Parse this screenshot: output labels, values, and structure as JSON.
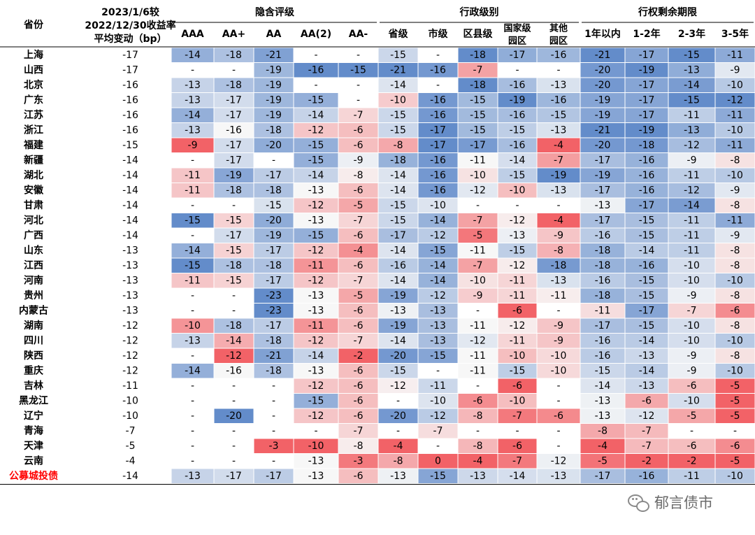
{
  "chart_data": {
    "type": "heatmap",
    "header": {
      "province_label": "省份",
      "avg_label_lines": [
        "2023/1/6较",
        "2022/12/30收益率",
        "平均变动（bp）"
      ],
      "groups": [
        {
          "name": "隐含评级",
          "columns": [
            "AAA",
            "AA+",
            "AA",
            "AA(2)",
            "AA-"
          ]
        },
        {
          "name": "行政级别",
          "columns": [
            "省级",
            "市级",
            "区县级",
            "国家级\n园区",
            "其他\n园区"
          ]
        },
        {
          "name": "行权剩余期限",
          "columns": [
            "1年以内",
            "1-2年",
            "2-3年",
            "3-5年"
          ]
        }
      ]
    },
    "rows": [
      {
        "province": "上海",
        "avg": -17,
        "values": [
          -14,
          -18,
          -21,
          "-",
          "-",
          -15,
          "-",
          -18,
          -17,
          -16,
          -21,
          -17,
          -15,
          -11
        ]
      },
      {
        "province": "山西",
        "avg": -17,
        "values": [
          "-",
          "-",
          -19,
          -16,
          -15,
          -21,
          -16,
          -7,
          "-",
          "-",
          -20,
          -19,
          -13,
          -9
        ]
      },
      {
        "province": "北京",
        "avg": -16,
        "values": [
          -13,
          -18,
          -19,
          "-",
          "-",
          -14,
          "-",
          -18,
          -16,
          -13,
          -20,
          -17,
          -14,
          -10
        ]
      },
      {
        "province": "广东",
        "avg": -16,
        "values": [
          -13,
          -17,
          -19,
          -15,
          "-",
          -10,
          -16,
          -15,
          -19,
          -16,
          -19,
          -17,
          -15,
          -12
        ]
      },
      {
        "province": "江苏",
        "avg": -16,
        "values": [
          -14,
          -17,
          -19,
          -14,
          -7,
          -15,
          -16,
          -15,
          -16,
          -15,
          -19,
          -17,
          -11,
          -11
        ]
      },
      {
        "province": "浙江",
        "avg": -16,
        "values": [
          -13,
          -16,
          -18,
          -12,
          -6,
          -15,
          -17,
          -15,
          -15,
          -13,
          -21,
          -19,
          -13,
          -10
        ]
      },
      {
        "province": "福建",
        "avg": -15,
        "values": [
          -9,
          -17,
          -20,
          -15,
          -6,
          -8,
          -17,
          -17,
          -16,
          -4,
          -20,
          -18,
          -12,
          -11
        ]
      },
      {
        "province": "新疆",
        "avg": -14,
        "values": [
          "-",
          -17,
          "-",
          -15,
          -9,
          -18,
          -16,
          -11,
          -14,
          -7,
          -17,
          -16,
          -9,
          -8
        ]
      },
      {
        "province": "湖北",
        "avg": -14,
        "values": [
          -11,
          -19,
          -17,
          -14,
          -8,
          -14,
          -16,
          -10,
          -15,
          -19,
          -19,
          -16,
          -11,
          -10
        ]
      },
      {
        "province": "安徽",
        "avg": -14,
        "values": [
          -11,
          -18,
          -18,
          -13,
          -6,
          -14,
          -16,
          -12,
          -10,
          -13,
          -17,
          -16,
          -12,
          -9
        ]
      },
      {
        "province": "甘肃",
        "avg": -14,
        "values": [
          "-",
          "-",
          -15,
          -12,
          -5,
          -15,
          -10,
          "-",
          "-",
          "-",
          -13,
          -17,
          -14,
          -8
        ]
      },
      {
        "province": "河北",
        "avg": -14,
        "values": [
          -15,
          -15,
          -20,
          -13,
          -7,
          -15,
          -14,
          -7,
          -12,
          -4,
          -17,
          -15,
          -11,
          -11
        ]
      },
      {
        "province": "广西",
        "avg": -14,
        "values": [
          "-",
          -17,
          -19,
          -15,
          -6,
          -17,
          -12,
          -5,
          -13,
          -9,
          -16,
          -15,
          -11,
          -9
        ]
      },
      {
        "province": "山东",
        "avg": -13,
        "values": [
          -14,
          -15,
          -17,
          -12,
          -4,
          -14,
          -15,
          -11,
          -15,
          -8,
          -18,
          -14,
          -11,
          -8
        ]
      },
      {
        "province": "江西",
        "avg": -13,
        "values": [
          -15,
          -18,
          -18,
          -11,
          -6,
          -16,
          -14,
          -7,
          -12,
          -18,
          -18,
          -16,
          -10,
          -8
        ]
      },
      {
        "province": "河南",
        "avg": -13,
        "values": [
          -11,
          -15,
          -17,
          -12,
          -7,
          -14,
          -14,
          -10,
          -11,
          -13,
          -16,
          -15,
          -10,
          -10
        ]
      },
      {
        "province": "贵州",
        "avg": -13,
        "values": [
          "-",
          "-",
          -23,
          -13,
          -5,
          -19,
          -12,
          -9,
          -11,
          -11,
          -18,
          -15,
          -9,
          -8
        ]
      },
      {
        "province": "内蒙古",
        "avg": -13,
        "values": [
          "-",
          "-",
          -23,
          -13,
          -6,
          -13,
          -13,
          "-",
          -6,
          "-",
          -11,
          -17,
          -7,
          -6
        ]
      },
      {
        "province": "湖南",
        "avg": -12,
        "values": [
          -10,
          -18,
          -17,
          -11,
          -6,
          -19,
          -13,
          -11,
          -12,
          -9,
          -17,
          -15,
          -10,
          -8
        ]
      },
      {
        "province": "四川",
        "avg": -12,
        "values": [
          -13,
          -14,
          -18,
          -12,
          -7,
          -14,
          -13,
          -12,
          -11,
          -9,
          -16,
          -14,
          -10,
          -10
        ]
      },
      {
        "province": "陕西",
        "avg": -12,
        "values": [
          "-",
          -12,
          -21,
          -14,
          -2,
          -20,
          -15,
          -11,
          -10,
          -10,
          -16,
          -13,
          -9,
          -8
        ]
      },
      {
        "province": "重庆",
        "avg": -12,
        "values": [
          -14,
          -16,
          -18,
          -13,
          -6,
          -15,
          "-",
          -11,
          -15,
          -10,
          -15,
          -14,
          -9,
          -10
        ]
      },
      {
        "province": "吉林",
        "avg": -11,
        "values": [
          "-",
          "-",
          "-",
          -12,
          -6,
          -12,
          -11,
          "-",
          -6,
          "-",
          -14,
          -13,
          -6,
          -5
        ]
      },
      {
        "province": "黑龙江",
        "avg": -10,
        "values": [
          "-",
          "-",
          "-",
          -15,
          -6,
          "-",
          -10,
          -6,
          -10,
          "-",
          -13,
          -6,
          -10,
          -5
        ]
      },
      {
        "province": "辽宁",
        "avg": -10,
        "values": [
          "-",
          -20,
          "-",
          -12,
          -6,
          -20,
          -12,
          -8,
          -7,
          -6,
          -13,
          -12,
          -5,
          -5
        ]
      },
      {
        "province": "青海",
        "avg": -7,
        "values": [
          "-",
          "-",
          "-",
          "-",
          -7,
          "-",
          -7,
          "-",
          "-",
          "-",
          -8,
          -7,
          "-",
          "-"
        ]
      },
      {
        "province": "天津",
        "avg": -5,
        "values": [
          "-",
          "-",
          -3,
          -10,
          -8,
          -4,
          "-",
          -8,
          -6,
          "-",
          -4,
          -7,
          -6,
          -6
        ]
      },
      {
        "province": "云南",
        "avg": -4,
        "values": [
          "-",
          "-",
          "-",
          -13,
          -3,
          -8,
          0,
          -4,
          -7,
          -12,
          -5,
          -2,
          -2,
          -5
        ]
      },
      {
        "province": "公募城投债",
        "avg": -14,
        "values": [
          -13,
          -17,
          -17,
          -13,
          -6,
          -13,
          -15,
          -13,
          -14,
          -13,
          -17,
          -16,
          -11,
          -10
        ],
        "highlight": true
      }
    ],
    "colors": {
      "cold": "#5b86c8",
      "mid": "#f7f7f7",
      "warm": "#f25a5f",
      "highlight_text": "#ff0000"
    }
  },
  "watermark": {
    "text": "郁言债市",
    "icon": "wechat-icon"
  }
}
